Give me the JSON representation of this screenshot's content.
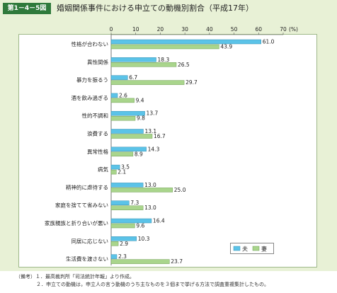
{
  "header": {
    "figure_label": "第1－4－5図",
    "title": "婚姻関係事件における申立ての動機別割合（平成17年）"
  },
  "colors": {
    "husband": "#5bc3e8",
    "wife": "#a9d58c",
    "panel": "#e8f1d6",
    "label_bg": "#2f7a3c"
  },
  "notes": [
    "（備考）１．最高裁判所「司法統計年報」より作成。",
    "２．申立ての動機は，申立人の言う動機のうち主なものを３個まで挙げる方法で調査重複集計したもの。"
  ],
  "chart_data": {
    "type": "bar",
    "orientation": "horizontal",
    "title": "婚姻関係事件における申立ての動機別割合（平成17年）",
    "xlabel": "",
    "ylabel": "",
    "unit": "(%)",
    "xlim": [
      0,
      70
    ],
    "ticks": [
      0,
      10,
      20,
      30,
      40,
      50,
      60,
      70
    ],
    "grid": false,
    "legend_position": "bottom-right",
    "categories": [
      "性格が合わない",
      "異性関係",
      "暴力を振るう",
      "酒を飲み過ぎる",
      "性的不調和",
      "浪費する",
      "異常性格",
      "病気",
      "精神的に虐待する",
      "家庭を捨てて省みない",
      "家族親族と折り合いが悪い",
      "同居に応じない",
      "生活費を渡さない"
    ],
    "series": [
      {
        "name": "夫",
        "values": [
          61.0,
          18.3,
          6.7,
          2.6,
          13.7,
          13.1,
          14.3,
          3.5,
          13.0,
          7.3,
          16.4,
          10.3,
          2.3
        ]
      },
      {
        "name": "妻",
        "values": [
          43.9,
          26.5,
          29.7,
          9.4,
          9.8,
          16.7,
          8.9,
          2.1,
          25.0,
          13.0,
          9.6,
          2.9,
          23.7
        ]
      }
    ]
  }
}
